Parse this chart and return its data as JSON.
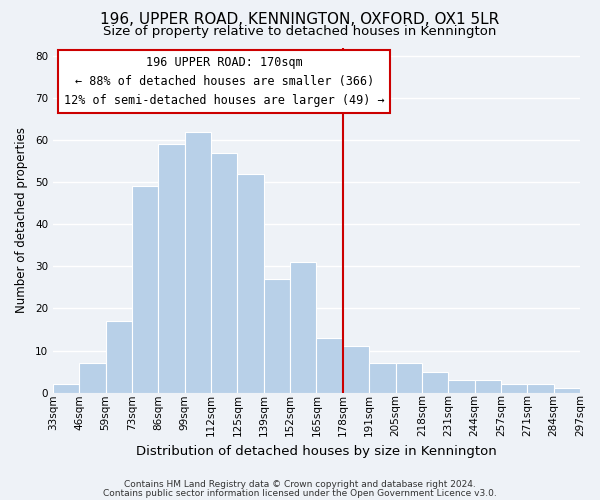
{
  "title": "196, UPPER ROAD, KENNINGTON, OXFORD, OX1 5LR",
  "subtitle": "Size of property relative to detached houses in Kennington",
  "xlabel": "Distribution of detached houses by size in Kennington",
  "ylabel": "Number of detached properties",
  "bin_labels": [
    "33sqm",
    "46sqm",
    "59sqm",
    "73sqm",
    "86sqm",
    "99sqm",
    "112sqm",
    "125sqm",
    "139sqm",
    "152sqm",
    "165sqm",
    "178sqm",
    "191sqm",
    "205sqm",
    "218sqm",
    "231sqm",
    "244sqm",
    "257sqm",
    "271sqm",
    "284sqm",
    "297sqm"
  ],
  "bar_heights": [
    2,
    7,
    17,
    49,
    59,
    62,
    57,
    52,
    27,
    31,
    13,
    11,
    7,
    7,
    5,
    3,
    3,
    2,
    2,
    1
  ],
  "bar_color": "#b8d0e8",
  "vline_color": "#cc0000",
  "ylim": [
    0,
    82
  ],
  "yticks": [
    0,
    10,
    20,
    30,
    40,
    50,
    60,
    70,
    80
  ],
  "annotation_title": "196 UPPER ROAD: 170sqm",
  "annotation_line1": "← 88% of detached houses are smaller (366)",
  "annotation_line2": "12% of semi-detached houses are larger (49) →",
  "annotation_box_color": "#ffffff",
  "annotation_box_edge": "#cc0000",
  "footer1": "Contains HM Land Registry data © Crown copyright and database right 2024.",
  "footer2": "Contains public sector information licensed under the Open Government Licence v3.0.",
  "background_color": "#eef2f7",
  "grid_color": "#ffffff",
  "title_fontsize": 11,
  "subtitle_fontsize": 9.5,
  "xlabel_fontsize": 9.5,
  "ylabel_fontsize": 8.5,
  "tick_fontsize": 7.5,
  "annotation_fontsize": 8.5,
  "footer_fontsize": 6.5
}
